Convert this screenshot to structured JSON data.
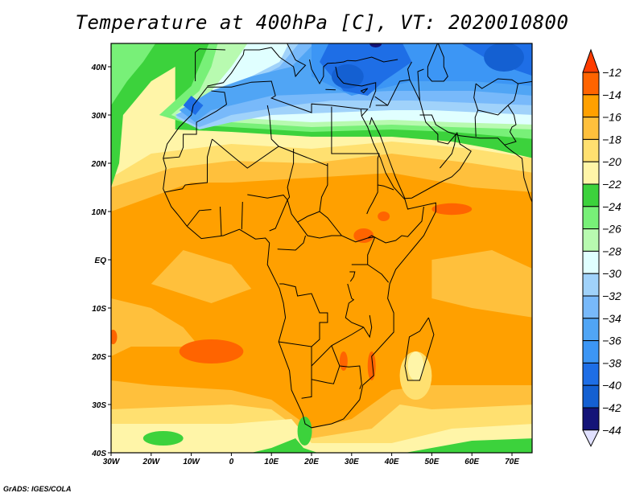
{
  "title": "Temperature at 400hPa [C], VT: 2020010800",
  "credit": "GrADS: IGES/COLA",
  "map": {
    "variable": "Temperature at 400hPa",
    "units": "C",
    "valid_time": "2020010800",
    "lon_range": [
      -30,
      75
    ],
    "lat_range": [
      -40,
      45
    ],
    "lon_ticks": [
      {
        "value": -30,
        "label": "30W"
      },
      {
        "value": -20,
        "label": "20W"
      },
      {
        "value": -10,
        "label": "10W"
      },
      {
        "value": 0,
        "label": "0"
      },
      {
        "value": 10,
        "label": "10E"
      },
      {
        "value": 20,
        "label": "20E"
      },
      {
        "value": 30,
        "label": "30E"
      },
      {
        "value": 40,
        "label": "40E"
      },
      {
        "value": 50,
        "label": "50E"
      },
      {
        "value": 60,
        "label": "60E"
      },
      {
        "value": 70,
        "label": "70E"
      }
    ],
    "lat_ticks": [
      {
        "value": 40,
        "label": "40N"
      },
      {
        "value": 30,
        "label": "30N"
      },
      {
        "value": 20,
        "label": "20N"
      },
      {
        "value": 10,
        "label": "10N"
      },
      {
        "value": 0,
        "label": "EQ"
      },
      {
        "value": -10,
        "label": "10S"
      },
      {
        "value": -20,
        "label": "20S"
      },
      {
        "value": -30,
        "label": "30S"
      },
      {
        "value": -40,
        "label": "40S"
      }
    ]
  },
  "colorbar": {
    "levels": [
      "-12",
      "-14",
      "-16",
      "-18",
      "-20",
      "-22",
      "-24",
      "-26",
      "-28",
      "-30",
      "-32",
      "-34",
      "-36",
      "-38",
      "-40",
      "-42",
      "-44"
    ],
    "over_color": "#ff3c00",
    "under_color": "#e1e1ff",
    "colors": [
      "#ff6400",
      "#ffa000",
      "#ffc03c",
      "#ffe070",
      "#fff5a8",
      "#3cd23c",
      "#78f078",
      "#b8fab0",
      "#e0ffff",
      "#a0d2fa",
      "#78b9fa",
      "#50a5f5",
      "#3c96f5",
      "#1e6ee6",
      "#1460d2",
      "#141478"
    ]
  }
}
